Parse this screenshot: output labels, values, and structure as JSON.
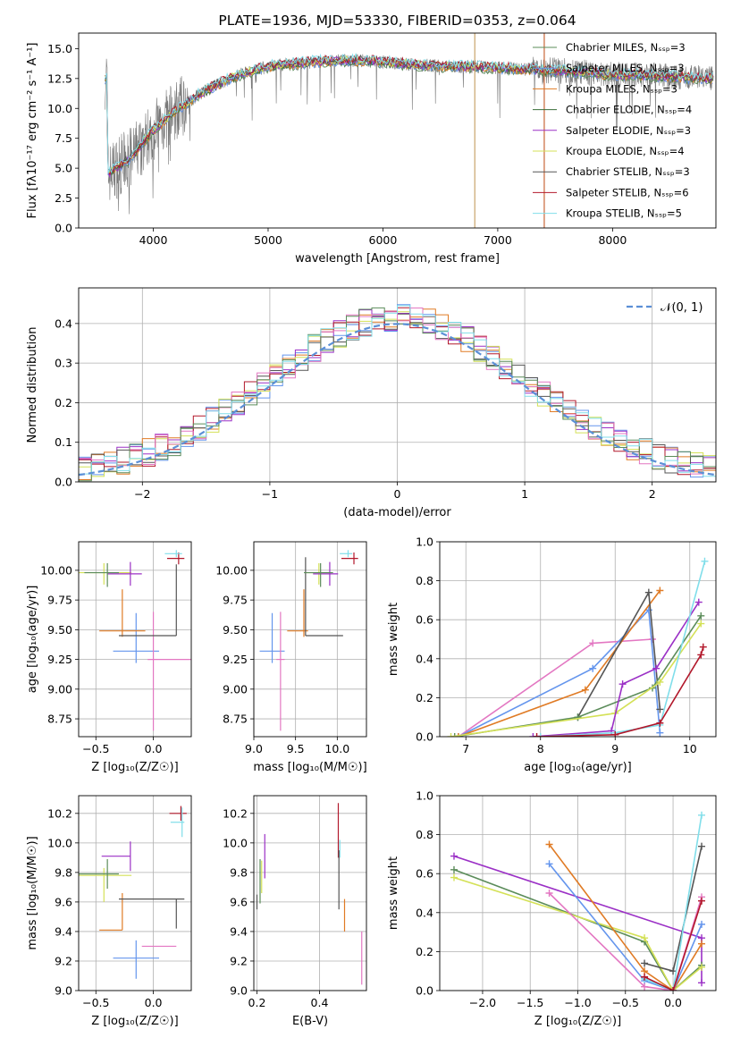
{
  "colors": [
    "#ff7f0e",
    "#4f81bd",
    "#6495ed",
    "#e07b25",
    "#3a6e3a",
    "#9b30c6",
    "#d4e157",
    "#555555",
    "#b2182b",
    "#80deea",
    "#e377c2",
    "#5b8c5a"
  ],
  "chart_data": [
    {
      "id": "spectrum",
      "type": "line",
      "title": "PLATE=1936, MJD=53330, FIBERID=0353, z=0.064",
      "xlabel": "wavelength [Angstrom, rest frame]",
      "ylabel": "Flux [fλ10⁻¹⁷ erg cm⁻² s⁻¹ A⁻¹]",
      "xlim": [
        3350,
        8900
      ],
      "ylim": [
        0,
        16.3
      ],
      "xticks": [
        "4000",
        "5000",
        "6000",
        "7000",
        "8000"
      ],
      "yticks": [
        "0.0",
        "2.5",
        "5.0",
        "7.5",
        "10.0",
        "12.5",
        "15.0"
      ],
      "legend_position": "right",
      "series": [
        {
          "name": "Chabrier MILES, Nₛₛₚ=3",
          "color": "#5b8c5a"
        },
        {
          "name": "Salpeter MILES, Nₛₛₚ=3",
          "color": "#6495ed"
        },
        {
          "name": "Kroupa MILES, Nₛₛₚ=3",
          "color": "#e07b25"
        },
        {
          "name": "Chabrier ELODIE, Nₛₛₚ=4",
          "color": "#3a6e3a"
        },
        {
          "name": "Salpeter ELODIE, Nₛₛₚ=3",
          "color": "#9b30c6"
        },
        {
          "name": "Kroupa ELODIE, Nₛₛₚ=4",
          "color": "#d4e157"
        },
        {
          "name": "Chabrier STELIB, Nₛₛₚ=3",
          "color": "#555555"
        },
        {
          "name": "Salpeter STELIB, Nₛₛₚ=6",
          "color": "#b2182b"
        },
        {
          "name": "Kroupa STELIB, Nₛₛₚ=5",
          "color": "#80deea"
        }
      ],
      "continuum": {
        "x": [
          3600,
          3800,
          4000,
          4200,
          4400,
          4600,
          4800,
          5000,
          5200,
          5400,
          5600,
          5800,
          6000,
          6200,
          6400,
          6600,
          6800,
          7000,
          7200,
          7400,
          7600,
          7800,
          8000,
          8200,
          8400,
          8600,
          8800
        ],
        "y": [
          4.5,
          5.8,
          8.2,
          9.8,
          11.2,
          12.2,
          13.0,
          13.5,
          13.7,
          13.9,
          14.0,
          14.0,
          13.9,
          13.7,
          13.6,
          13.5,
          13.5,
          13.4,
          13.3,
          13.2,
          13.1,
          13.0,
          12.8,
          12.8,
          12.7,
          12.6,
          12.5
        ]
      }
    },
    {
      "id": "residuals",
      "type": "histogram",
      "xlabel": "(data-model)/error",
      "ylabel": "Normed distribution",
      "xlim": [
        -2.5,
        2.5
      ],
      "ylim": [
        0,
        0.49
      ],
      "xticks": [
        "−2",
        "−1",
        "0",
        "1",
        "2"
      ],
      "yticks": [
        "0.0",
        "0.1",
        "0.2",
        "0.3",
        "0.4"
      ],
      "legend": "𝒩(0, 1)",
      "legend_position": "top-right",
      "grid": true
    },
    {
      "id": "age_vs_Z",
      "type": "scatter",
      "xlabel": "Z [log₁₀(Z/Z☉)]",
      "ylabel": "age  [log₁₀(age/yr)]",
      "xlim": [
        -0.65,
        0.33
      ],
      "ylim": [
        8.6,
        10.24
      ],
      "xticks": [
        "−0.5",
        "0.0"
      ],
      "yticks": [
        "8.75",
        "9.00",
        "9.25",
        "9.50",
        "9.75",
        "10.00"
      ],
      "points": [
        {
          "x": -0.15,
          "y": 9.32,
          "xerr": [
            0.2,
            0.2
          ],
          "yerr": [
            0.1,
            0.32
          ],
          "color": "#6495ed"
        },
        {
          "x": 0.0,
          "y": 9.25,
          "xerr": [
            0.05,
            0.33
          ],
          "yerr": [
            0.6,
            0.4
          ],
          "color": "#e377c2"
        },
        {
          "x": -0.27,
          "y": 9.49,
          "xerr": [
            0.2,
            0.2
          ],
          "yerr": [
            0.05,
            0.35
          ],
          "color": "#e07b25"
        },
        {
          "x": 0.2,
          "y": 9.45,
          "xerr": [
            0.5,
            0.0
          ],
          "yerr": [
            0.0,
            0.6
          ],
          "color": "#555555"
        },
        {
          "x": -0.43,
          "y": 9.98,
          "xerr": [
            0.22,
            0.24
          ],
          "yerr": [
            0.1,
            0.08
          ],
          "color": "#d4e157"
        },
        {
          "x": -0.2,
          "y": 9.97,
          "xerr": [
            0.2,
            0.1
          ],
          "yerr": [
            0.1,
            0.1
          ],
          "color": "#9b30c6"
        },
        {
          "x": -0.4,
          "y": 9.98,
          "xerr": [
            0.2,
            0.1
          ],
          "yerr": [
            0.12,
            0.08
          ],
          "color": "#5b8c5a"
        },
        {
          "x": 0.22,
          "y": 10.1,
          "xerr": [
            0.1,
            0.05
          ],
          "yerr": [
            0.05,
            0.05
          ],
          "color": "#b2182b"
        },
        {
          "x": 0.2,
          "y": 10.14,
          "xerr": [
            0.1,
            0.05
          ],
          "yerr": [
            0.03,
            0.03
          ],
          "color": "#80deea"
        }
      ]
    },
    {
      "id": "age_vs_mass",
      "type": "scatter",
      "xlabel": "mass [log₁₀(M/M☉)]",
      "ylabel": "",
      "xlim": [
        9.0,
        10.35
      ],
      "ylim": [
        8.6,
        10.24
      ],
      "xticks": [
        "9.0",
        "9.5",
        "10.0"
      ],
      "yticks": [
        "8.75",
        "9.00",
        "9.25",
        "9.50",
        "9.75",
        "10.00"
      ],
      "points": [
        {
          "x": 9.22,
          "y": 9.32,
          "xerr": [
            0.15,
            0.15
          ],
          "yerr": [
            0.1,
            0.32
          ],
          "color": "#6495ed"
        },
        {
          "x": 9.32,
          "y": 9.25,
          "xerr": [
            0.05,
            0.05
          ],
          "yerr": [
            0.6,
            0.4
          ],
          "color": "#e377c2"
        },
        {
          "x": 9.6,
          "y": 9.49,
          "xerr": [
            0.2,
            0.05
          ],
          "yerr": [
            0.05,
            0.35
          ],
          "color": "#e07b25"
        },
        {
          "x": 9.62,
          "y": 9.45,
          "xerr": [
            0.0,
            0.45
          ],
          "yerr": [
            0.0,
            0.66
          ],
          "color": "#555555"
        },
        {
          "x": 9.78,
          "y": 9.98,
          "xerr": [
            0.15,
            0.15
          ],
          "yerr": [
            0.1,
            0.08
          ],
          "color": "#d4e157"
        },
        {
          "x": 9.91,
          "y": 9.97,
          "xerr": [
            0.2,
            0.1
          ],
          "yerr": [
            0.1,
            0.1
          ],
          "color": "#9b30c6"
        },
        {
          "x": 9.8,
          "y": 9.98,
          "xerr": [
            0.2,
            0.15
          ],
          "yerr": [
            0.12,
            0.08
          ],
          "color": "#5b8c5a"
        },
        {
          "x": 10.2,
          "y": 10.1,
          "xerr": [
            0.15,
            0.05
          ],
          "yerr": [
            0.05,
            0.05
          ],
          "color": "#b2182b"
        },
        {
          "x": 10.13,
          "y": 10.14,
          "xerr": [
            0.1,
            0.05
          ],
          "yerr": [
            0.03,
            0.03
          ],
          "color": "#80deea"
        }
      ]
    },
    {
      "id": "weight_vs_age",
      "type": "line",
      "xlabel": "age  [log₁₀(age/yr)]",
      "ylabel": "mass weight",
      "xlim": [
        6.65,
        10.35
      ],
      "ylim": [
        0.0,
        1.0
      ],
      "xticks": [
        "7",
        "8",
        "9",
        "10"
      ],
      "yticks": [
        "0.0",
        "0.2",
        "0.4",
        "0.6",
        "0.8",
        "1.0"
      ],
      "grid": true,
      "series": [
        {
          "color": "#e377c2",
          "x": [
            6.9,
            8.7,
            9.5
          ],
          "y": [
            0.0,
            0.48,
            0.5
          ]
        },
        {
          "color": "#6495ed",
          "x": [
            6.9,
            8.7,
            9.45,
            9.6
          ],
          "y": [
            0.0,
            0.35,
            0.65,
            0.02
          ]
        },
        {
          "color": "#e07b25",
          "x": [
            6.9,
            8.6,
            9.6
          ],
          "y": [
            0.0,
            0.24,
            0.75
          ]
        },
        {
          "color": "#555555",
          "x": [
            8.5,
            9.45,
            9.6
          ],
          "y": [
            0.1,
            0.74,
            0.14
          ]
        },
        {
          "color": "#5b8c5a",
          "x": [
            6.85,
            8.5,
            9.5,
            10.15
          ],
          "y": [
            0.0,
            0.1,
            0.25,
            0.62
          ]
        },
        {
          "color": "#d4e157",
          "x": [
            6.8,
            9.0,
            9.6,
            10.15
          ],
          "y": [
            0.0,
            0.12,
            0.28,
            0.58
          ]
        },
        {
          "color": "#9b30c6",
          "x": [
            7.9,
            8.95,
            9.1,
            9.55,
            10.12
          ],
          "y": [
            0.0,
            0.03,
            0.27,
            0.35,
            0.69
          ]
        },
        {
          "color": "#80deea",
          "x": [
            8.0,
            9.0,
            9.6,
            10.2
          ],
          "y": [
            0.0,
            0.02,
            0.06,
            0.9
          ]
        },
        {
          "color": "#b2182b",
          "x": [
            7.95,
            9.0,
            9.6,
            10.15,
            10.18
          ],
          "y": [
            0.0,
            0.01,
            0.07,
            0.42,
            0.46
          ]
        }
      ]
    },
    {
      "id": "mass_vs_Z",
      "type": "scatter",
      "xlabel": "Z [log₁₀(Z/Z☉)]",
      "ylabel": "mass [log₁₀(M/M☉)]",
      "xlim": [
        -0.65,
        0.33
      ],
      "ylim": [
        9.0,
        10.32
      ],
      "xticks": [
        "−0.5",
        "0.0"
      ],
      "yticks": [
        "9.0",
        "9.2",
        "9.4",
        "9.6",
        "9.8",
        "10.0",
        "10.2"
      ],
      "points": [
        {
          "x": -0.15,
          "y": 9.22,
          "xerr": [
            0.2,
            0.2
          ],
          "yerr": [
            0.14,
            0.12
          ],
          "color": "#6495ed"
        },
        {
          "x": -0.1,
          "y": 9.3,
          "xerr": [
            0.0,
            0.3
          ],
          "yerr": [
            0.0,
            0.0
          ],
          "color": "#e377c2"
        },
        {
          "x": -0.27,
          "y": 9.41,
          "xerr": [
            0.2,
            0.0
          ],
          "yerr": [
            0.0,
            0.25
          ],
          "color": "#e07b25"
        },
        {
          "x": 0.2,
          "y": 9.62,
          "xerr": [
            0.5,
            0.07
          ],
          "yerr": [
            0.2,
            0.0
          ],
          "color": "#555555"
        },
        {
          "x": -0.43,
          "y": 9.78,
          "xerr": [
            0.22,
            0.24
          ],
          "yerr": [
            0.18,
            0.05
          ],
          "color": "#d4e157"
        },
        {
          "x": -0.2,
          "y": 9.91,
          "xerr": [
            0.25,
            0.0
          ],
          "yerr": [
            0.1,
            0.1
          ],
          "color": "#9b30c6"
        },
        {
          "x": -0.4,
          "y": 9.79,
          "xerr": [
            0.25,
            0.1
          ],
          "yerr": [
            0.1,
            0.1
          ],
          "color": "#5b8c5a"
        },
        {
          "x": 0.24,
          "y": 10.2,
          "xerr": [
            0.1,
            0.05
          ],
          "yerr": [
            0.05,
            0.05
          ],
          "color": "#b2182b"
        },
        {
          "x": 0.25,
          "y": 10.14,
          "xerr": [
            0.1,
            0.02
          ],
          "yerr": [
            0.1,
            0.1
          ],
          "color": "#80deea"
        }
      ]
    },
    {
      "id": "mass_vs_ebv",
      "type": "scatter",
      "xlabel": "E(B-V)",
      "ylabel": "",
      "xlim": [
        0.19,
        0.55
      ],
      "ylim": [
        9.0,
        10.32
      ],
      "xticks": [
        "0.2",
        "0.4"
      ],
      "yticks": [
        "9.0",
        "9.2",
        "9.4",
        "9.6",
        "9.8",
        "10.0",
        "10.2"
      ],
      "points": [
        {
          "x": 0.215,
          "y": 9.78,
          "yerr": [
            0.12,
            0.1
          ],
          "color": "#d4e157"
        },
        {
          "x": 0.225,
          "y": 9.91,
          "yerr": [
            0.15,
            0.15
          ],
          "color": "#9b30c6"
        },
        {
          "x": 0.21,
          "y": 9.79,
          "yerr": [
            0.2,
            0.1
          ],
          "color": "#5b8c5a"
        },
        {
          "x": 0.46,
          "y": 10.0,
          "yerr": [
            0.1,
            0.27
          ],
          "color": "#b2182b"
        },
        {
          "x": 0.465,
          "y": 9.95,
          "yerr": [
            0.05,
            0.07
          ],
          "color": "#80deea"
        },
        {
          "x": 0.462,
          "y": 9.75,
          "yerr": [
            0.2,
            0.2
          ],
          "color": "#555555"
        },
        {
          "x": 0.48,
          "y": 9.52,
          "yerr": [
            0.12,
            0.1
          ],
          "color": "#e07b25"
        },
        {
          "x": 0.535,
          "y": 9.22,
          "yerr": [
            0.18,
            0.18
          ],
          "color": "#e377c2"
        },
        {
          "x": 0.2,
          "y": 9.6,
          "yerr": [
            0.05,
            0.05
          ],
          "color": "#555555"
        }
      ]
    },
    {
      "id": "weight_vs_Z",
      "type": "line",
      "xlabel": "Z [log₁₀(Z/Z☉)]",
      "ylabel": "mass weight",
      "xlim": [
        -2.45,
        0.45
      ],
      "ylim": [
        0.0,
        1.0
      ],
      "xticks": [
        "−2.0",
        "−1.5",
        "−1.0",
        "−0.5",
        "0.0"
      ],
      "yticks": [
        "0.0",
        "0.2",
        "0.4",
        "0.6",
        "0.8",
        "1.0"
      ],
      "grid": true,
      "series": [
        {
          "color": "#9b30c6",
          "x": [
            -2.3,
            0.3,
            0.3
          ],
          "y": [
            0.69,
            0.27,
            0.04
          ]
        },
        {
          "color": "#5b8c5a",
          "x": [
            -2.3,
            -0.3,
            0.0,
            0.3
          ],
          "y": [
            0.62,
            0.25,
            0.0,
            0.13
          ]
        },
        {
          "color": "#d4e157",
          "x": [
            -2.3,
            -0.3,
            0.0,
            0.3
          ],
          "y": [
            0.58,
            0.27,
            0.0,
            0.12
          ]
        },
        {
          "color": "#e07b25",
          "x": [
            -1.3,
            -0.3,
            0.0,
            0.3
          ],
          "y": [
            0.75,
            0.1,
            0.0,
            0.24
          ]
        },
        {
          "color": "#6495ed",
          "x": [
            -1.3,
            -0.3,
            0.0,
            0.3
          ],
          "y": [
            0.65,
            0.05,
            0.0,
            0.34
          ]
        },
        {
          "color": "#e377c2",
          "x": [
            -1.3,
            -0.3,
            0.0,
            0.3
          ],
          "y": [
            0.5,
            0.02,
            0.0,
            0.48
          ]
        },
        {
          "color": "#555555",
          "x": [
            -0.3,
            0.0,
            0.3
          ],
          "y": [
            0.14,
            0.1,
            0.74
          ]
        },
        {
          "color": "#80deea",
          "x": [
            -0.3,
            0.0,
            0.3
          ],
          "y": [
            0.06,
            0.0,
            0.9
          ]
        },
        {
          "color": "#b2182b",
          "x": [
            -0.3,
            0.0,
            0.3
          ],
          "y": [
            0.07,
            0.0,
            0.46
          ]
        }
      ]
    }
  ]
}
